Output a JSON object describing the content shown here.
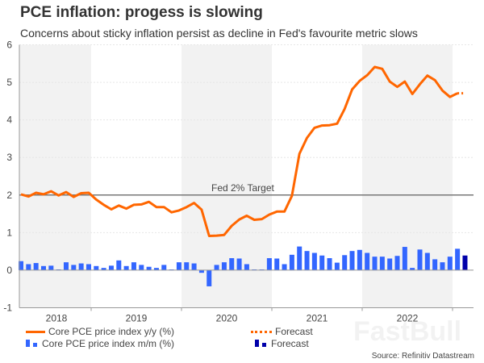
{
  "header": {
    "title": "PCE inflation: progess is slowing",
    "subtitle": "Concerns about sticky inflation persist as decline in Fed's favourite metric slows"
  },
  "watermark": "FastBull",
  "source": "Source: Refinitiv Datastream",
  "colors": {
    "line": "#ff6600",
    "bars": "#3366ff",
    "bars_forecast": "#0000aa",
    "target": "#777777",
    "band": "#f2f2f2"
  },
  "chart_data": {
    "type": "bar+line",
    "ylim": [
      -1,
      6
    ],
    "yticks": [
      "-1",
      "0",
      "1",
      "2",
      "3",
      "4",
      "5",
      "6"
    ],
    "year_labels": [
      "2018",
      "2019",
      "2020",
      "2021",
      "2022"
    ],
    "shaded_years": [
      "2018",
      "2020",
      "2022"
    ],
    "grid": true,
    "target": {
      "value": 2,
      "label": "Fed 2% Target"
    },
    "x": [
      "2018-03",
      "2018-04",
      "2018-05",
      "2018-06",
      "2018-07",
      "2018-08",
      "2018-09",
      "2018-10",
      "2018-11",
      "2018-12",
      "2019-01",
      "2019-02",
      "2019-03",
      "2019-04",
      "2019-05",
      "2019-06",
      "2019-07",
      "2019-08",
      "2019-09",
      "2019-10",
      "2019-11",
      "2019-12",
      "2020-01",
      "2020-02",
      "2020-03",
      "2020-04",
      "2020-05",
      "2020-06",
      "2020-07",
      "2020-08",
      "2020-09",
      "2020-10",
      "2020-11",
      "2020-12",
      "2021-01",
      "2021-02",
      "2021-03",
      "2021-04",
      "2021-05",
      "2021-06",
      "2021-07",
      "2021-08",
      "2021-09",
      "2021-10",
      "2021-11",
      "2021-12",
      "2022-01",
      "2022-02",
      "2022-03",
      "2022-04",
      "2022-05",
      "2022-06",
      "2022-07",
      "2022-08",
      "2022-09",
      "2022-10",
      "2022-11",
      "2022-12",
      "2023-01",
      "2023-02"
    ],
    "series": [
      {
        "name": "Core PCE price index y/y (%)",
        "type": "line",
        "values": [
          2.02,
          1.96,
          2.06,
          2.02,
          2.1,
          1.99,
          2.08,
          1.95,
          2.05,
          2.06,
          1.88,
          1.74,
          1.62,
          1.72,
          1.64,
          1.74,
          1.75,
          1.82,
          1.68,
          1.68,
          1.54,
          1.59,
          1.68,
          1.79,
          1.61,
          0.91,
          0.92,
          0.94,
          1.18,
          1.35,
          1.45,
          1.34,
          1.36,
          1.48,
          1.56,
          1.56,
          1.98,
          3.1,
          3.52,
          3.79,
          3.85,
          3.86,
          3.9,
          4.29,
          4.81,
          5.04,
          5.19,
          5.41,
          5.36,
          5.02,
          4.88,
          5.02,
          4.69,
          4.95,
          5.18,
          5.06,
          4.78,
          4.61,
          4.71,
          null
        ]
      },
      {
        "name": "Forecast",
        "type": "line-dotted",
        "values": [
          null,
          null,
          null,
          null,
          null,
          null,
          null,
          null,
          null,
          null,
          null,
          null,
          null,
          null,
          null,
          null,
          null,
          null,
          null,
          null,
          null,
          null,
          null,
          null,
          null,
          null,
          null,
          null,
          null,
          null,
          null,
          null,
          null,
          null,
          null,
          null,
          null,
          null,
          null,
          null,
          null,
          null,
          null,
          null,
          null,
          null,
          null,
          null,
          null,
          null,
          null,
          null,
          null,
          null,
          null,
          null,
          null,
          null,
          4.71,
          4.71
        ]
      },
      {
        "name": "Core PCE price index m/m (%)",
        "type": "bar",
        "values": [
          0.24,
          0.16,
          0.19,
          0.11,
          0.12,
          0.02,
          0.21,
          0.14,
          0.18,
          0.16,
          0.11,
          0.06,
          0.12,
          0.26,
          0.11,
          0.21,
          0.14,
          0.09,
          0.06,
          0.14,
          0.02,
          0.21,
          0.21,
          0.18,
          -0.07,
          -0.43,
          0.14,
          0.21,
          0.32,
          0.31,
          0.16,
          0.02,
          0.02,
          0.32,
          0.31,
          0.16,
          0.41,
          0.63,
          0.51,
          0.46,
          0.39,
          0.32,
          0.2,
          0.4,
          0.51,
          0.54,
          0.46,
          0.36,
          0.36,
          0.31,
          0.38,
          0.62,
          0.06,
          0.55,
          0.46,
          0.29,
          0.21,
          0.36,
          0.57,
          null
        ]
      },
      {
        "name": "Forecast",
        "type": "bar-forecast",
        "values": [
          null,
          null,
          null,
          null,
          null,
          null,
          null,
          null,
          null,
          null,
          null,
          null,
          null,
          null,
          null,
          null,
          null,
          null,
          null,
          null,
          null,
          null,
          null,
          null,
          null,
          null,
          null,
          null,
          null,
          null,
          null,
          null,
          null,
          null,
          null,
          null,
          null,
          null,
          null,
          null,
          null,
          null,
          null,
          null,
          null,
          null,
          null,
          null,
          null,
          null,
          null,
          null,
          null,
          null,
          null,
          null,
          null,
          null,
          null,
          0.39
        ]
      }
    ],
    "legend": {
      "placement": "bottom",
      "items": [
        "Core PCE price index y/y (%)",
        "Forecast",
        "Core PCE price index m/m (%)",
        "Forecast"
      ]
    }
  }
}
